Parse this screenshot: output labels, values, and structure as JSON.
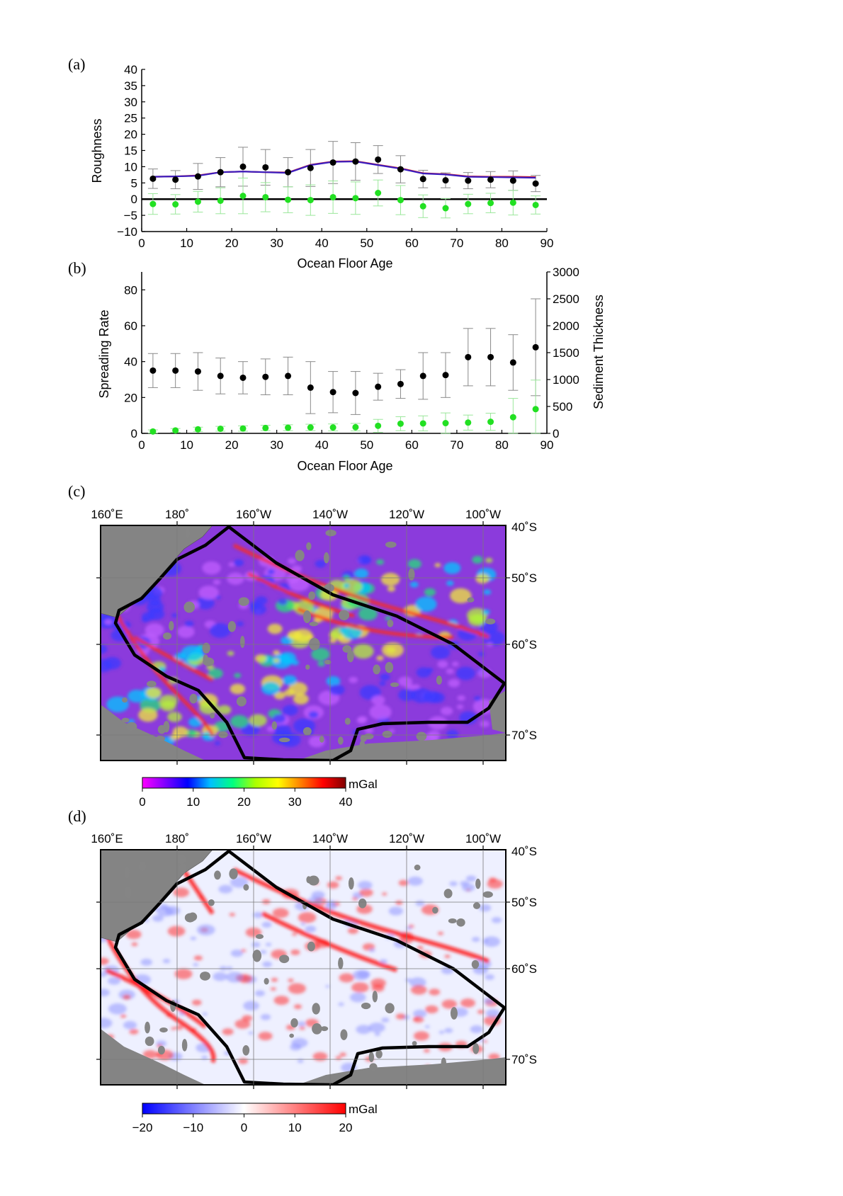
{
  "panel_labels": [
    "(a)",
    "(b)",
    "(c)",
    "(d)"
  ],
  "chart_data": [
    {
      "type": "scatter",
      "panel": "(a)",
      "xlabel": "Ocean Floor Age",
      "ylabel": "Roughness",
      "xlim": [
        0,
        90
      ],
      "ylim": [
        -10,
        40
      ],
      "xticks": [
        "0",
        "10",
        "20",
        "30",
        "40",
        "50",
        "60",
        "70",
        "80",
        "90"
      ],
      "yticks": [
        "−10",
        "−5",
        "0",
        "5",
        "10",
        "15",
        "20",
        "25",
        "30",
        "35",
        "40"
      ],
      "zero_line": true,
      "series": [
        {
          "color": "#000000",
          "x": [
            2.5,
            7.5,
            12.5,
            17.5,
            22.5,
            27.5,
            32.5,
            37.5,
            42.5,
            47.5,
            52.5,
            57.5,
            62.5,
            67.5,
            72.5,
            77.5,
            82.5,
            87.5
          ],
          "y": [
            6.3,
            6.0,
            7.0,
            8.3,
            10.0,
            9.8,
            8.3,
            9.6,
            11.3,
            11.6,
            12.2,
            9.2,
            6.2,
            5.8,
            5.7,
            6.0,
            5.7,
            4.8
          ],
          "err": [
            3.0,
            2.8,
            4.0,
            4.5,
            6.0,
            5.5,
            4.5,
            5.7,
            6.5,
            5.8,
            4.3,
            4.2,
            2.7,
            2.3,
            2.5,
            2.5,
            3.0,
            2.5
          ],
          "err_color": "#8a8a8a"
        },
        {
          "color": "#22e022",
          "x": [
            2.5,
            7.5,
            12.5,
            17.5,
            22.5,
            27.5,
            32.5,
            37.5,
            42.5,
            47.5,
            52.5,
            57.5,
            62.5,
            67.5,
            72.5,
            77.5,
            82.5,
            87.5
          ],
          "y": [
            -1.5,
            -1.6,
            -0.8,
            -0.5,
            1.0,
            0.6,
            -0.2,
            -0.3,
            0.6,
            0.3,
            1.9,
            -0.3,
            -2.2,
            -2.8,
            -1.5,
            -1.2,
            -1.1,
            -1.8
          ],
          "err": [
            3.2,
            3.0,
            3.2,
            4.0,
            5.5,
            4.5,
            4.0,
            4.7,
            5.0,
            5.0,
            4.0,
            4.5,
            3.5,
            3.0,
            3.0,
            3.0,
            3.8,
            2.8
          ],
          "err_color": "#9be79b"
        },
        {
          "type": "line",
          "color": "#e01a1a",
          "x": [
            2.5,
            7.5,
            12.5,
            17.5,
            22.5,
            27.5,
            32.5,
            37.5,
            42.5,
            47.5,
            52.5,
            57.5,
            62.5,
            67.5,
            72.5,
            77.5,
            82.5,
            87.5
          ],
          "y": [
            6.9,
            7.0,
            7.3,
            8.3,
            8.5,
            8.3,
            8.2,
            10.6,
            11.6,
            11.7,
            10.6,
            9.5,
            8.0,
            7.7,
            7.0,
            6.9,
            6.9,
            6.8
          ]
        },
        {
          "type": "line",
          "color": "#3b1dbf",
          "x": [
            2.5,
            7.5,
            12.5,
            17.5,
            22.5,
            27.5,
            32.5,
            37.5,
            42.5,
            47.5,
            52.5,
            57.5,
            62.5,
            67.5,
            72.5,
            77.5,
            82.5,
            87.5
          ],
          "y": [
            6.9,
            7.0,
            7.2,
            8.3,
            8.5,
            8.3,
            8.1,
            10.5,
            11.5,
            11.6,
            10.5,
            9.4,
            7.9,
            7.6,
            6.9,
            6.8,
            6.7,
            6.6
          ]
        }
      ]
    },
    {
      "type": "scatter",
      "panel": "(b)",
      "xlabel": "Ocean Floor Age",
      "ylabel": "Spreading Rate",
      "ylabel_right": "Sediment Thickness",
      "xlim": [
        0,
        90
      ],
      "ylim": [
        0,
        90
      ],
      "ylim_right": [
        0,
        3000
      ],
      "xticks": [
        "0",
        "10",
        "20",
        "30",
        "40",
        "50",
        "60",
        "70",
        "80",
        "90"
      ],
      "yticks": [
        "0",
        "20",
        "40",
        "60",
        "80"
      ],
      "yticks_right": [
        "0",
        "500",
        "1000",
        "1500",
        "2000",
        "2500",
        "3000"
      ],
      "series": [
        {
          "axis": "left",
          "color": "#000000",
          "x": [
            2.5,
            7.5,
            12.5,
            17.5,
            22.5,
            27.5,
            32.5,
            37.5,
            42.5,
            47.5,
            52.5,
            57.5,
            62.5,
            67.5,
            72.5,
            77.5,
            82.5,
            87.5
          ],
          "y": [
            35,
            35,
            34.5,
            32,
            31,
            31.5,
            32,
            25.5,
            23,
            22.5,
            26,
            27.5,
            32,
            32.5,
            42.5,
            42.5,
            39.5,
            48
          ],
          "err": [
            9.5,
            9.5,
            10.5,
            10,
            9,
            10,
            10.5,
            14.5,
            11.5,
            12,
            7.5,
            8,
            13,
            12.5,
            16,
            16,
            15.5,
            27
          ],
          "err_color": "#8a8a8a"
        },
        {
          "axis": "right",
          "color": "#22e022",
          "x": [
            2.5,
            7.5,
            12.5,
            17.5,
            22.5,
            27.5,
            32.5,
            37.5,
            42.5,
            47.5,
            52.5,
            57.5,
            62.5,
            67.5,
            72.5,
            77.5,
            82.5,
            87.5
          ],
          "y": [
            35,
            55,
            75,
            85,
            90,
            100,
            105,
            110,
            110,
            115,
            140,
            180,
            185,
            190,
            200,
            215,
            300,
            450
          ],
          "err": [
            30,
            35,
            40,
            45,
            50,
            50,
            55,
            60,
            65,
            70,
            120,
            130,
            140,
            190,
            140,
            160,
            350,
            540
          ],
          "err_color": "#9be79b"
        }
      ]
    }
  ],
  "maps": [
    {
      "panel": "(c)",
      "lon_labels": [
        "160˚E",
        "180˚",
        "160˚W",
        "140˚W",
        "120˚W",
        "100˚W"
      ],
      "lat_labels": [
        "40˚S",
        "50˚S",
        "60˚S",
        "70˚S"
      ],
      "colorbar": {
        "unit": "mGal",
        "ticks": [
          "0",
          "10",
          "20",
          "30",
          "40"
        ],
        "colors": [
          "#ff00ff",
          "#8000ff",
          "#0000ff",
          "#00bfff",
          "#00ff80",
          "#aaff00",
          "#ffff00",
          "#ff8000",
          "#ff0000",
          "#800000"
        ]
      }
    },
    {
      "panel": "(d)",
      "lon_labels": [
        "160˚E",
        "180˚",
        "160˚W",
        "140˚W",
        "120˚W",
        "100˚W"
      ],
      "lat_labels": [
        "40˚S",
        "50˚S",
        "60˚S",
        "70˚S"
      ],
      "colorbar": {
        "unit": "mGal",
        "ticks": [
          "−20",
          "−10",
          "0",
          "10",
          "20"
        ],
        "colors": [
          "#0000ff",
          "#8080ff",
          "#ffffff",
          "#ff8080",
          "#ff0000"
        ]
      }
    }
  ]
}
